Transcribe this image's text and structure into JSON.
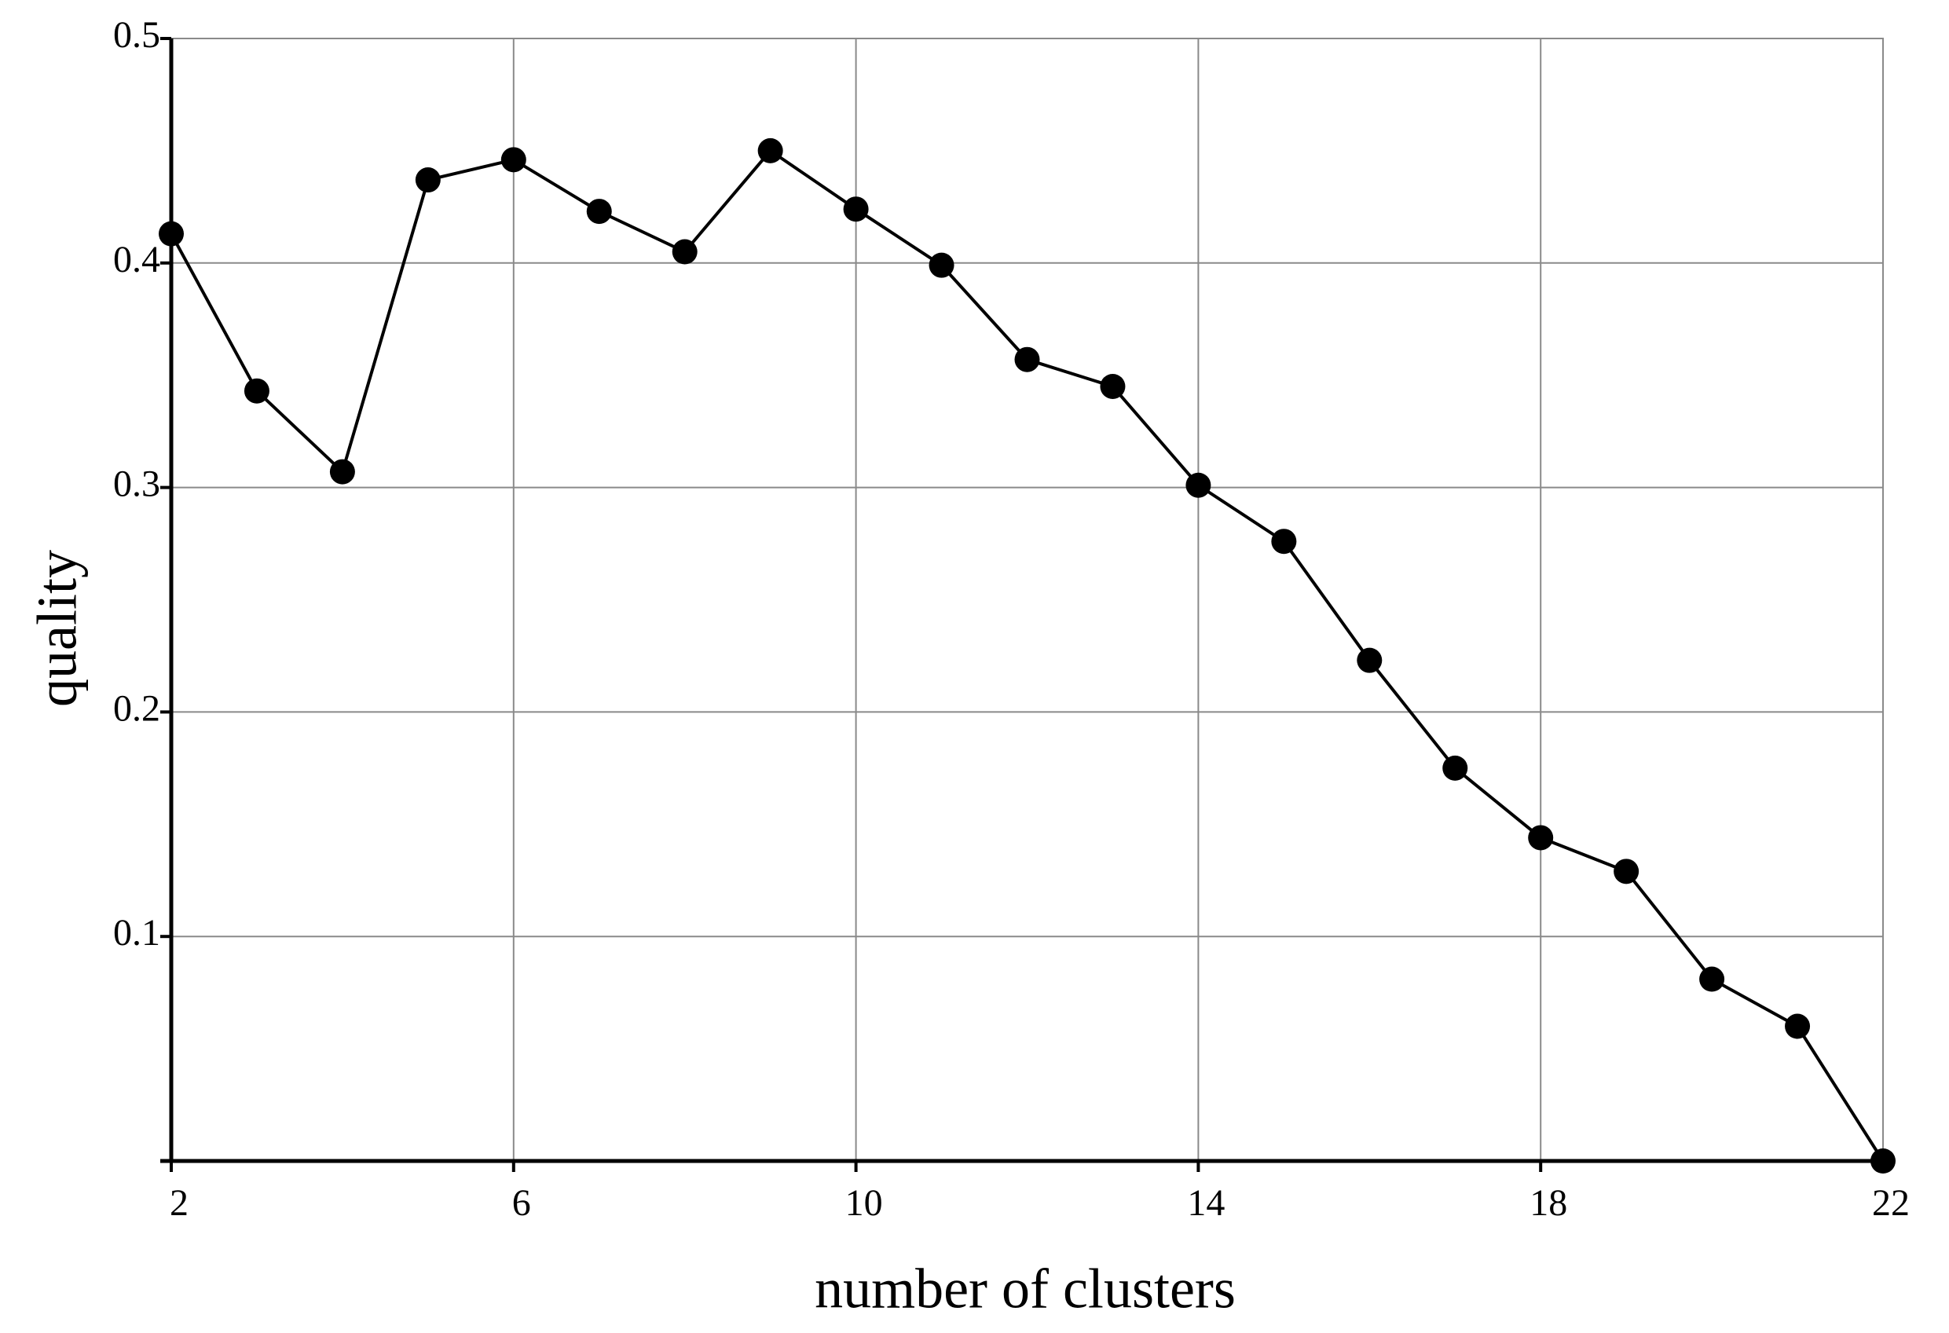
{
  "chart_data": {
    "type": "line",
    "x_label": "number of clusters",
    "y_label": "quality",
    "x": [
      2,
      3,
      4,
      5,
      6,
      7,
      8,
      9,
      10,
      11,
      12,
      13,
      14,
      15,
      16,
      17,
      18,
      19,
      20,
      21,
      22
    ],
    "values": [
      0.413,
      0.343,
      0.307,
      0.437,
      0.446,
      0.423,
      0.405,
      0.45,
      0.424,
      0.399,
      0.357,
      0.345,
      0.301,
      0.276,
      0.223,
      0.175,
      0.144,
      0.129,
      0.081,
      0.06,
      0.0
    ],
    "color": "#000000",
    "xlim": [
      2,
      22
    ],
    "xticks": [
      2,
      6,
      10,
      14,
      18,
      22
    ],
    "ylim": [
      0,
      0.5
    ],
    "yticks": [
      0.1,
      0.2,
      0.3,
      0.4,
      0.5
    ],
    "grid": true,
    "markers": true
  }
}
